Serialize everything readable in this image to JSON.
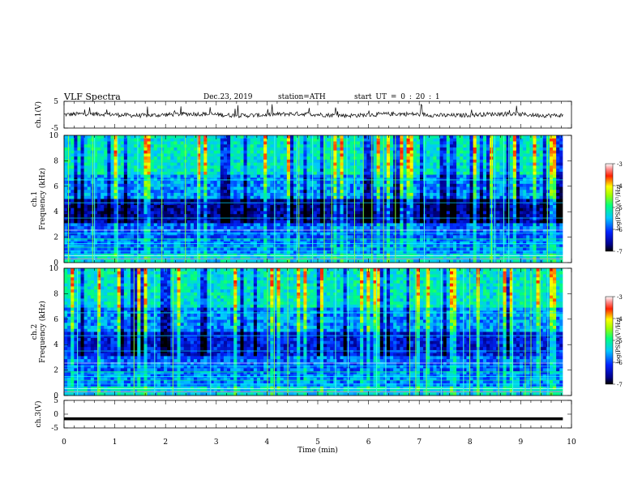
{
  "header": {
    "title": "VLF  Spectra",
    "date": "Dec.23, 2019",
    "station": "station=ATH",
    "start": "start  UT  =    0  : 20 : 1"
  },
  "colors": {
    "colormap": [
      "#ffffff",
      "#000000",
      "#0000a8",
      "#0022ff",
      "#00c8ff",
      "#00ff90",
      "#ffff00",
      "#ff0000",
      "#ffe0e0"
    ],
    "trace": "#000000"
  },
  "chart_data": [
    {
      "type": "line",
      "name": "ch1-waveform",
      "ylabel": "ch.1(V)",
      "ylim": [
        -5,
        5
      ],
      "yticks": [
        "5",
        "-5"
      ],
      "xlim": [
        0,
        10
      ],
      "values": [
        0.4,
        -0.1,
        0.6,
        0.2,
        -0.3,
        0.5,
        0.1,
        0.3,
        -0.2,
        0.4,
        0.0,
        0.6,
        0.2,
        -0.1,
        0.3,
        0.5,
        -0.2,
        0.1,
        0.4,
        0.0
      ],
      "xmax_data": 9.83
    },
    {
      "type": "heatmap",
      "name": "ch1-spectrogram",
      "ylabel": "ch.1\nFrequency  (kHz)",
      "ylim": [
        0,
        10
      ],
      "yticks": [
        "0",
        "2",
        "4",
        "6",
        "8",
        "10"
      ],
      "xlim": [
        0,
        10
      ],
      "xmax_data": 9.83,
      "colorbar": {
        "label": "log(PSD)(V²/Hz)",
        "range": [
          -7,
          -3
        ],
        "ticks": [
          "-3",
          "-4",
          "-5",
          "-6",
          "-7"
        ]
      }
    },
    {
      "type": "heatmap",
      "name": "ch2-spectrogram",
      "ylabel": "ch.2\nFrequency  (kHz)",
      "ylim": [
        0,
        10
      ],
      "yticks": [
        "0",
        "2",
        "4",
        "6",
        "8",
        "10"
      ],
      "xlim": [
        0,
        10
      ],
      "xmax_data": 9.83,
      "colorbar": {
        "label": "log(PSD)(V²/Hz)",
        "range": [
          -7,
          -3
        ],
        "ticks": [
          "-3",
          "-4",
          "-5",
          "-6",
          "-7"
        ]
      }
    },
    {
      "type": "line",
      "name": "ch3-waveform",
      "ylabel": "ch.3(V)",
      "ylim": [
        -5,
        5
      ],
      "yticks": [
        "5",
        "0",
        "-5"
      ],
      "xlim": [
        0,
        10
      ],
      "xmax_data": 9.83,
      "values": [
        -1.7,
        -1.7
      ]
    }
  ],
  "xaxis": {
    "label": "Time  (min)",
    "ticks": [
      "0",
      "1",
      "2",
      "3",
      "4",
      "5",
      "6",
      "7",
      "8",
      "9",
      "10"
    ]
  }
}
